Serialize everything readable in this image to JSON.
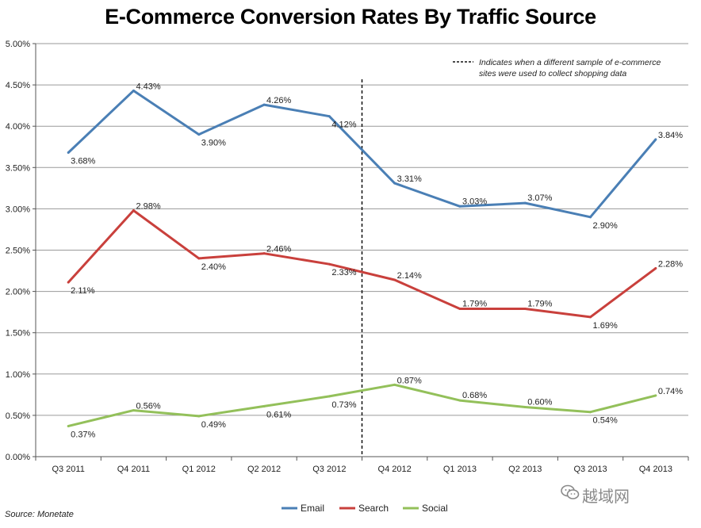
{
  "chart_data": {
    "type": "line",
    "title": "E-Commerce Conversion Rates By Traffic Source",
    "categories": [
      "Q3 2011",
      "Q4 2011",
      "Q1 2012",
      "Q2 2012",
      "Q3 2012",
      "Q4 2012",
      "Q1 2013",
      "Q2 2013",
      "Q3 2013",
      "Q4 2013"
    ],
    "y_ticks": [
      "0.00%",
      "0.50%",
      "1.00%",
      "1.50%",
      "2.00%",
      "2.50%",
      "3.00%",
      "3.50%",
      "4.00%",
      "4.50%",
      "5.00%"
    ],
    "ylim": [
      0,
      5
    ],
    "grid": true,
    "series": [
      {
        "name": "Email",
        "color": "#4a7fb5",
        "values": [
          3.68,
          4.43,
          3.9,
          4.26,
          4.12,
          3.31,
          3.03,
          3.07,
          2.9,
          3.84
        ],
        "labels": [
          "3.68%",
          "4.43%",
          "3.90%",
          "4.26%",
          "4.12%",
          "3.31%",
          "3.03%",
          "3.07%",
          "2.90%",
          "3.84%"
        ]
      },
      {
        "name": "Search",
        "color": "#c9403c",
        "values": [
          2.11,
          2.98,
          2.4,
          2.46,
          2.33,
          2.14,
          1.79,
          1.79,
          1.69,
          2.28
        ],
        "labels": [
          "2.11%",
          "2.98%",
          "2.40%",
          "2.46%",
          "2.33%",
          "2.14%",
          "1.79%",
          "1.79%",
          "1.69%",
          "2.28%"
        ]
      },
      {
        "name": "Social",
        "color": "#93c05a",
        "values": [
          0.37,
          0.56,
          0.49,
          0.61,
          0.73,
          0.87,
          0.68,
          0.6,
          0.54,
          0.74
        ],
        "labels": [
          "0.37%",
          "0.56%",
          "0.49%",
          "0.61%",
          "0.73%",
          "0.87%",
          "0.68%",
          "0.60%",
          "0.54%",
          "0.74%"
        ]
      }
    ],
    "annotation": {
      "line1": "Indicates when a different sample of e-commerce",
      "line2": "sites were used to collect shopping data"
    },
    "source": "Source: Monetate"
  },
  "watermark": "越域网"
}
